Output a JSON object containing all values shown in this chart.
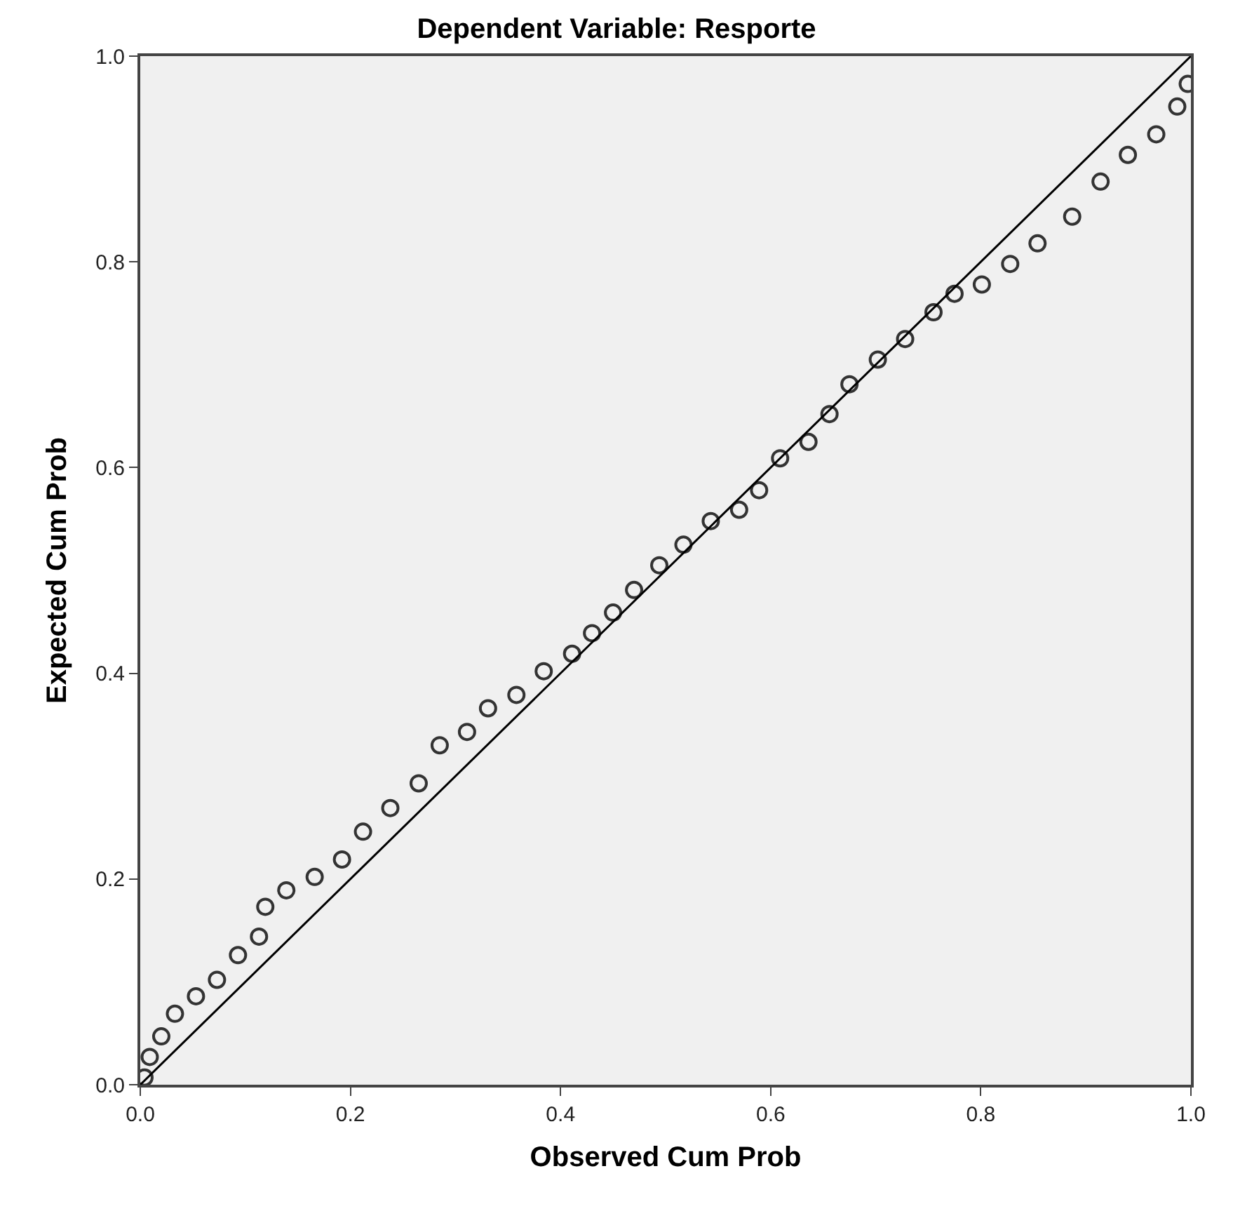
{
  "chart_data": {
    "type": "scatter",
    "title": "Dependent Variable: Resporte",
    "xlabel": "Observed Cum Prob",
    "ylabel": "Expected Cum Prob",
    "xlim": [
      0,
      1
    ],
    "ylim": [
      0,
      1
    ],
    "xticks": [
      {
        "value": 0,
        "label": "0.0"
      },
      {
        "value": 0.2,
        "label": "0.2"
      },
      {
        "value": 0.4,
        "label": "0.4"
      },
      {
        "value": 0.6,
        "label": "0.6"
      },
      {
        "value": 0.8,
        "label": "0.8"
      },
      {
        "value": 1,
        "label": "1.0"
      }
    ],
    "yticks": [
      {
        "value": 0,
        "label": "0.0"
      },
      {
        "value": 0.2,
        "label": "0.2"
      },
      {
        "value": 0.4,
        "label": "0.4"
      },
      {
        "value": 0.6,
        "label": "0.6"
      },
      {
        "value": 0.8,
        "label": "0.8"
      },
      {
        "value": 1,
        "label": "1.0"
      }
    ],
    "grid": false,
    "marker": "circle",
    "series": [
      {
        "color": "#333333",
        "x": [
          0.004,
          0.009,
          0.02,
          0.033,
          0.053,
          0.073,
          0.093,
          0.113,
          0.119,
          0.139,
          0.166,
          0.192,
          0.212,
          0.238,
          0.265,
          0.285,
          0.311,
          0.331,
          0.358,
          0.384,
          0.411,
          0.43,
          0.45,
          0.47,
          0.494,
          0.517,
          0.543,
          0.57,
          0.589,
          0.609,
          0.636,
          0.656,
          0.675,
          0.702,
          0.728,
          0.755,
          0.775,
          0.801,
          0.828,
          0.854,
          0.887,
          0.914,
          0.94,
          0.967,
          0.987,
          0.997
        ],
        "values": [
          0.007,
          0.027,
          0.047,
          0.069,
          0.086,
          0.102,
          0.126,
          0.144,
          0.173,
          0.189,
          0.202,
          0.219,
          0.246,
          0.269,
          0.293,
          0.33,
          0.343,
          0.366,
          0.379,
          0.402,
          0.419,
          0.439,
          0.459,
          0.481,
          0.505,
          0.525,
          0.548,
          0.559,
          0.578,
          0.609,
          0.625,
          0.652,
          0.681,
          0.705,
          0.725,
          0.751,
          0.769,
          0.778,
          0.798,
          0.818,
          0.844,
          0.878,
          0.904,
          0.924,
          0.951,
          0.973
        ]
      },
      {
        "type": "line",
        "color": "#000000",
        "x": [
          0,
          1
        ],
        "values": [
          0,
          1
        ],
        "marker": "none"
      }
    ]
  }
}
